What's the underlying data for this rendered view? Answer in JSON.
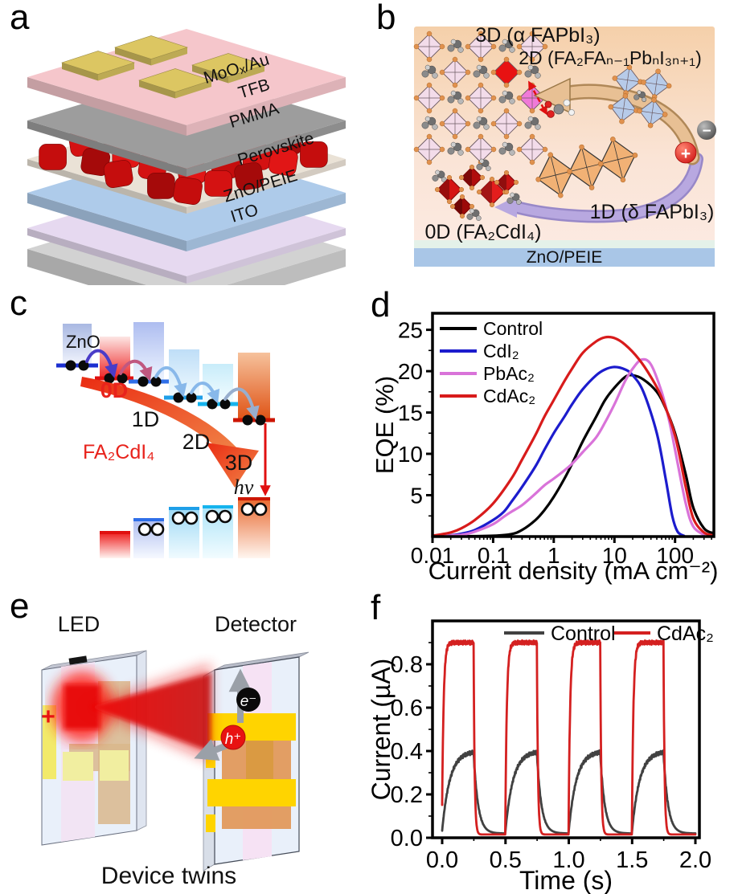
{
  "chart_data": [
    {
      "id": "eqe-vs-current-density",
      "panel": "d",
      "type": "line",
      "title": "",
      "xlabel": "Current density (mA cm⁻²)",
      "ylabel": "EQE (%)",
      "x_scale": "log",
      "xlim": [
        0.01,
        437
      ],
      "ylim": [
        0,
        27
      ],
      "x_ticks": [
        0.01,
        0.1,
        1,
        10,
        100
      ],
      "x_tick_labels": [
        "0.01",
        "0.1",
        "1",
        "10",
        "100"
      ],
      "y_ticks": [
        5,
        10,
        15,
        20,
        25
      ],
      "y_tick_labels": [
        "5",
        "10",
        "15",
        "20",
        "25"
      ],
      "grid": false,
      "legend_position": "top-left",
      "series": [
        {
          "name": "Control",
          "color": "#000000",
          "points": [
            [
              0.01,
              0.02
            ],
            [
              0.05,
              0.05
            ],
            [
              0.1,
              0.1
            ],
            [
              0.2,
              0.3
            ],
            [
              0.3,
              0.8
            ],
            [
              0.5,
              2.0
            ],
            [
              0.7,
              3.2
            ],
            [
              1,
              4.8
            ],
            [
              1.5,
              7.0
            ],
            [
              2,
              8.8
            ],
            [
              3,
              11.5
            ],
            [
              5,
              14.5
            ],
            [
              7,
              16.5
            ],
            [
              10,
              18.0
            ],
            [
              15,
              19.3
            ],
            [
              20,
              19.5
            ],
            [
              30,
              19.0
            ],
            [
              50,
              17.5
            ],
            [
              70,
              15.5
            ],
            [
              100,
              12.5
            ],
            [
              150,
              7.5
            ],
            [
              200,
              3.5
            ],
            [
              300,
              1.0
            ],
            [
              430,
              0.4
            ]
          ]
        },
        {
          "name": "CdI₂",
          "color": "#1c1ccd",
          "points": [
            [
              0.01,
              0.05
            ],
            [
              0.02,
              0.15
            ],
            [
              0.03,
              0.35
            ],
            [
              0.05,
              0.8
            ],
            [
              0.1,
              2.0
            ],
            [
              0.15,
              3.0
            ],
            [
              0.2,
              4.2
            ],
            [
              0.3,
              6.0
            ],
            [
              0.5,
              8.5
            ],
            [
              0.7,
              10.5
            ],
            [
              1,
              12.5
            ],
            [
              1.5,
              14.5
            ],
            [
              2,
              16.0
            ],
            [
              3,
              17.8
            ],
            [
              5,
              19.5
            ],
            [
              7,
              20.2
            ],
            [
              10,
              20.5
            ],
            [
              15,
              20.2
            ],
            [
              20,
              19.5
            ],
            [
              30,
              17.5
            ],
            [
              50,
              12.5
            ],
            [
              70,
              7.0
            ],
            [
              90,
              2.5
            ],
            [
              110,
              0.6
            ],
            [
              140,
              0.1
            ]
          ]
        },
        {
          "name": "PbAc₂",
          "color": "#d973d9",
          "points": [
            [
              0.01,
              0.02
            ],
            [
              0.03,
              0.2
            ],
            [
              0.05,
              0.6
            ],
            [
              0.1,
              1.5
            ],
            [
              0.15,
              2.4
            ],
            [
              0.2,
              3.0
            ],
            [
              0.3,
              3.8
            ],
            [
              0.5,
              5.2
            ],
            [
              0.7,
              6.2
            ],
            [
              1,
              7.0
            ],
            [
              1.5,
              8.0
            ],
            [
              2,
              8.8
            ],
            [
              3,
              10.2
            ],
            [
              5,
              12.0
            ],
            [
              7,
              13.8
            ],
            [
              10,
              16.0
            ],
            [
              15,
              18.8
            ],
            [
              20,
              20.3
            ],
            [
              28,
              21.4
            ],
            [
              40,
              20.8
            ],
            [
              60,
              17.5
            ],
            [
              80,
              14.0
            ],
            [
              100,
              10.5
            ],
            [
              150,
              4.0
            ],
            [
              200,
              1.2
            ],
            [
              300,
              0.2
            ]
          ]
        },
        {
          "name": "CdAc₂",
          "color": "#d81b1b",
          "points": [
            [
              0.01,
              0.1
            ],
            [
              0.02,
              0.5
            ],
            [
              0.03,
              1.0
            ],
            [
              0.05,
              2.0
            ],
            [
              0.1,
              4.0
            ],
            [
              0.2,
              7.0
            ],
            [
              0.3,
              9.3
            ],
            [
              0.5,
              12.3
            ],
            [
              0.7,
              14.5
            ],
            [
              1,
              16.5
            ],
            [
              1.5,
              18.8
            ],
            [
              2,
              20.3
            ],
            [
              3,
              22.2
            ],
            [
              5,
              23.6
            ],
            [
              7,
              24.1
            ],
            [
              10,
              24.0
            ],
            [
              15,
              23.2
            ],
            [
              25,
              21.5
            ],
            [
              40,
              19.3
            ],
            [
              60,
              16.8
            ],
            [
              100,
              12.2
            ],
            [
              150,
              6.0
            ],
            [
              200,
              2.2
            ],
            [
              300,
              0.5
            ],
            [
              430,
              0.15
            ]
          ]
        }
      ]
    },
    {
      "id": "photocurrent-transient",
      "panel": "f",
      "type": "line",
      "title": "",
      "xlabel": "Time (s)",
      "ylabel": "Current (µA)",
      "x_scale": "linear",
      "xlim": [
        0,
        2
      ],
      "ylim": [
        0,
        1.0
      ],
      "x_ticks": [
        0,
        0.5,
        1,
        1.5,
        2
      ],
      "x_tick_labels": [
        "0.0",
        "0.5",
        "1.0",
        "1.5",
        "2.0"
      ],
      "y_ticks": [
        0,
        0.2,
        0.4,
        0.6,
        0.8
      ],
      "y_tick_labels": [
        "0.0",
        "0.2",
        "0.4",
        "0.6",
        "0.8"
      ],
      "grid": false,
      "legend_position": "top",
      "pulse_train": {
        "period_s": 0.5,
        "on_duration_s": 0.25,
        "start_s": 0,
        "cycles": 4,
        "end_s": 2.0
      },
      "series": [
        {
          "name": "Control",
          "color": "#414141",
          "on_level_uA": 0.4,
          "off_level_uA": 0.02,
          "rise_tau_s": 0.06,
          "fall_tau_s": 0.035
        },
        {
          "name": "CdAc₂",
          "color": "#d42020",
          "on_level_uA": 0.9,
          "off_level_uA": 0.015,
          "rise_tau_s": 0.012,
          "fall_tau_s": 0.008
        }
      ]
    }
  ],
  "panels": {
    "a": {
      "letter": "a",
      "layers": [
        {
          "name": "MoOₓ/Au",
          "color": "#dcc662"
        },
        {
          "name": "TFB",
          "color": "#f5c6cb"
        },
        {
          "name": "PMMA",
          "color": "#9d9d9d"
        },
        {
          "name": "Perovskite",
          "color": "#cf1111"
        },
        {
          "name": "ZnO/PEIE",
          "color": "#aecbea"
        },
        {
          "name": "ITO",
          "color": "#e6d9f0"
        }
      ]
    },
    "b": {
      "letter": "b",
      "labels": {
        "three_d": "3D (α FAPbI₃)",
        "two_d": "2D (FA₂FAₙ₋₁PbₙI₃ₙ₊₁)",
        "one_d": "1D (δ FAPbI₃)",
        "zero_d": "0D (FA₂CdI₄)",
        "substrate": "ZnO/PEIE"
      },
      "charges": {
        "plus": "+",
        "minus": "−"
      }
    },
    "c": {
      "letter": "c",
      "labels": {
        "zno": "ZnO",
        "zero_d": "0D",
        "one_d": "1D",
        "two_d": "2D",
        "three_d": "3D",
        "compound": "FA₂CdI₄",
        "photon": "hν"
      }
    },
    "d": {
      "letter": "d"
    },
    "e": {
      "letter": "e",
      "led": "LED",
      "detector": "Detector",
      "caption": "Device twins",
      "electron": "e⁻",
      "hole": "h⁺",
      "plus": "+"
    },
    "f": {
      "letter": "f"
    }
  }
}
